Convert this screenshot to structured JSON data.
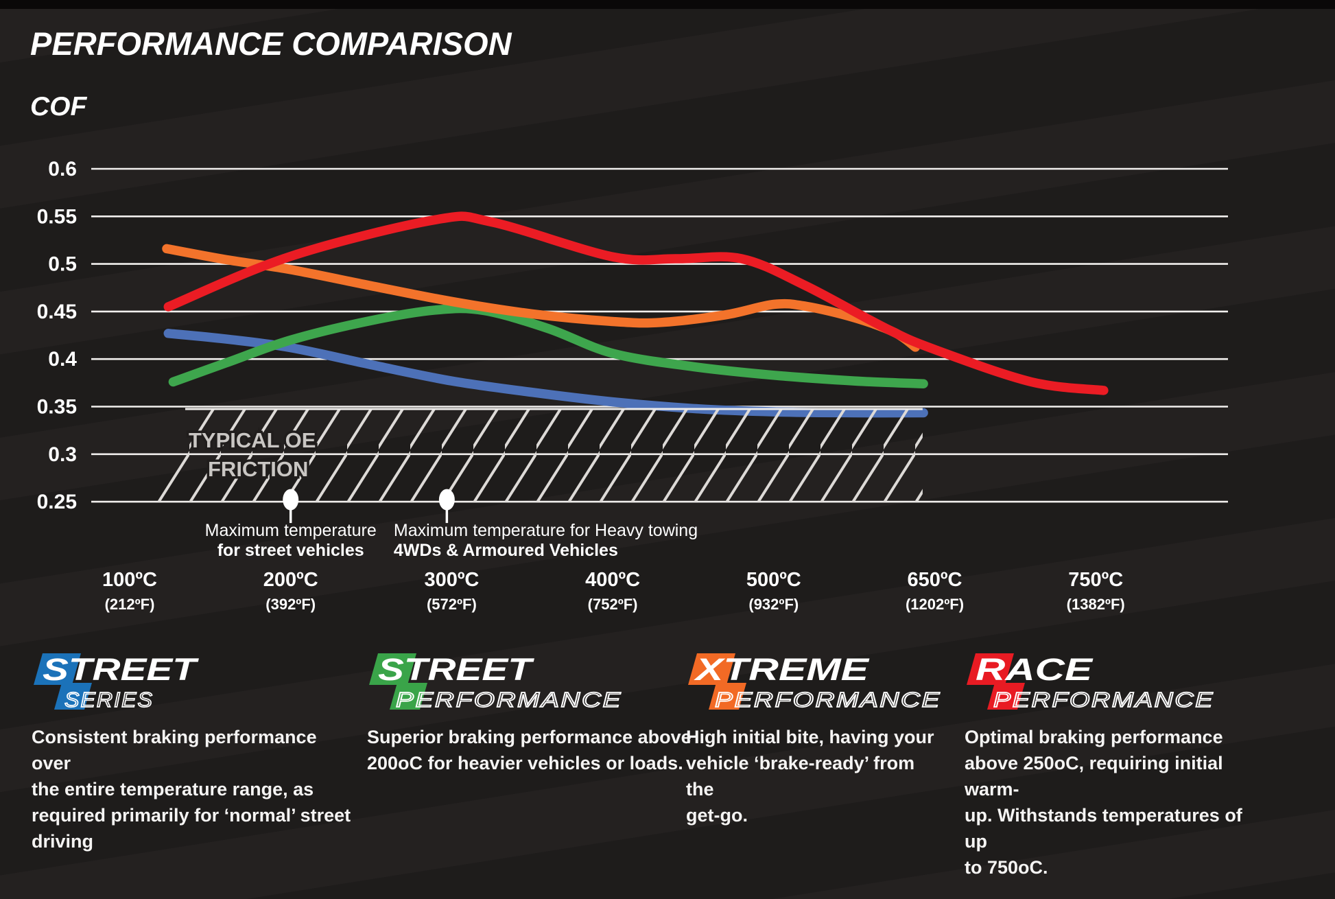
{
  "header": {
    "title": "PERFORMANCE COMPARISON",
    "y_axis_title": "COF"
  },
  "chart_data": {
    "type": "line",
    "title": "PERFORMANCE COMPARISON",
    "ylabel": "COF",
    "ylim": [
      0.25,
      0.6
    ],
    "grid": true,
    "y_ticks": [
      0.6,
      0.55,
      0.5,
      0.45,
      0.4,
      0.35,
      0.3,
      0.25
    ],
    "x_ticks": [
      {
        "celsius": "100ºC",
        "fahrenheit": "(212ºF)"
      },
      {
        "celsius": "200ºC",
        "fahrenheit": "(392ºF)"
      },
      {
        "celsius": "300ºC",
        "fahrenheit": "(572ºF)"
      },
      {
        "celsius": "400ºC",
        "fahrenheit": "(752ºF)"
      },
      {
        "celsius": "500ºC",
        "fahrenheit": "(932ºF)"
      },
      {
        "celsius": "650ºC",
        "fahrenheit": "(1202ºF)"
      },
      {
        "celsius": "750ºC",
        "fahrenheit": "(1382ºF)"
      }
    ],
    "series": [
      {
        "name": "Street Series",
        "color": "#4d71b8",
        "points": [
          [
            0.24,
            0.427
          ],
          [
            0.6,
            0.421
          ],
          [
            1.0,
            0.412
          ],
          [
            1.5,
            0.394
          ],
          [
            2.0,
            0.377
          ],
          [
            2.5,
            0.365
          ],
          [
            3.0,
            0.355
          ],
          [
            3.5,
            0.348
          ],
          [
            4.0,
            0.3445
          ],
          [
            4.5,
            0.3435
          ],
          [
            4.93,
            0.3435
          ]
        ]
      },
      {
        "name": "Street Performance",
        "color": "#3ea64d",
        "points": [
          [
            0.27,
            0.376
          ],
          [
            0.6,
            0.396
          ],
          [
            1.0,
            0.42
          ],
          [
            1.5,
            0.4405
          ],
          [
            1.9,
            0.4515
          ],
          [
            2.2,
            0.451
          ],
          [
            2.6,
            0.432
          ],
          [
            3.0,
            0.406
          ],
          [
            3.5,
            0.392
          ],
          [
            4.0,
            0.383
          ],
          [
            4.5,
            0.377
          ],
          [
            4.93,
            0.374
          ]
        ]
      },
      {
        "name": "Xtreme Performance",
        "color": "#f3732b",
        "points": [
          [
            0.23,
            0.516
          ],
          [
            0.6,
            0.5045
          ],
          [
            1.0,
            0.494
          ],
          [
            1.5,
            0.477
          ],
          [
            2.0,
            0.4605
          ],
          [
            2.5,
            0.4475
          ],
          [
            3.0,
            0.4395
          ],
          [
            3.3,
            0.4385
          ],
          [
            3.7,
            0.4465
          ],
          [
            4.0,
            0.4575
          ],
          [
            4.2,
            0.4555
          ],
          [
            4.5,
            0.4435
          ],
          [
            4.75,
            0.428
          ],
          [
            4.88,
            0.4125
          ]
        ]
      },
      {
        "name": "Race Performance",
        "color": "#eb1c24",
        "points": [
          [
            0.24,
            0.455
          ],
          [
            1.0,
            0.508
          ],
          [
            1.9,
            0.5465
          ],
          [
            2.25,
            0.544
          ],
          [
            3.0,
            0.5075
          ],
          [
            3.4,
            0.5055
          ],
          [
            3.8,
            0.5055
          ],
          [
            4.2,
            0.477
          ],
          [
            4.7,
            0.432
          ],
          [
            5.0,
            0.41
          ],
          [
            5.6,
            0.376
          ],
          [
            6.05,
            0.367
          ]
        ]
      }
    ],
    "oe_band": {
      "label_line1": "TYPICAL OE",
      "label_line2": "FRICTION",
      "y_top": 0.3475,
      "y_bottom": 0.25,
      "x_start_bottom": 0.1,
      "x_start_top": 0.345,
      "x_end": 4.925
    },
    "annotations": [
      {
        "marker_x": 1.0,
        "marker_y": 0.25,
        "line1": "Maximum temperature",
        "line2": "for street vehicles",
        "align": "center",
        "text_x": 1.0
      },
      {
        "marker_x": 1.97,
        "marker_y": 0.25,
        "line1": "Maximum temperature for Heavy towing",
        "line2": "4WDs & Armoured Vehicles",
        "align": "left",
        "text_x": 1.64
      }
    ]
  },
  "legend": [
    {
      "brand_line1": "STREET",
      "brand_line2": "SERIES",
      "patch_color": "#1b72b9",
      "description_lines": [
        "Consistent braking performance over",
        "the entire temperature range, as",
        "required primarily for ‘normal’ street",
        "driving"
      ]
    },
    {
      "brand_line1": "STREET",
      "brand_line2": "PERFORMANCE",
      "patch_color": "#3aa449",
      "description_lines": [
        "Superior braking performance above",
        "200oC for heavier vehicles or loads."
      ]
    },
    {
      "brand_line1": "XTREME",
      "brand_line2": "PERFORMANCE",
      "patch_color": "#f26a25",
      "description_lines": [
        "High initial bite, having your",
        "vehicle ‘brake-ready’ from the",
        "get-go."
      ]
    },
    {
      "brand_line1": "RACE",
      "brand_line2": "PERFORMANCE",
      "patch_color": "#e81b23",
      "description_lines": [
        "Optimal braking performance",
        "above 250oC, requiring initial warm-",
        "up. Withstands temperatures of up",
        "to 750oC."
      ]
    }
  ]
}
